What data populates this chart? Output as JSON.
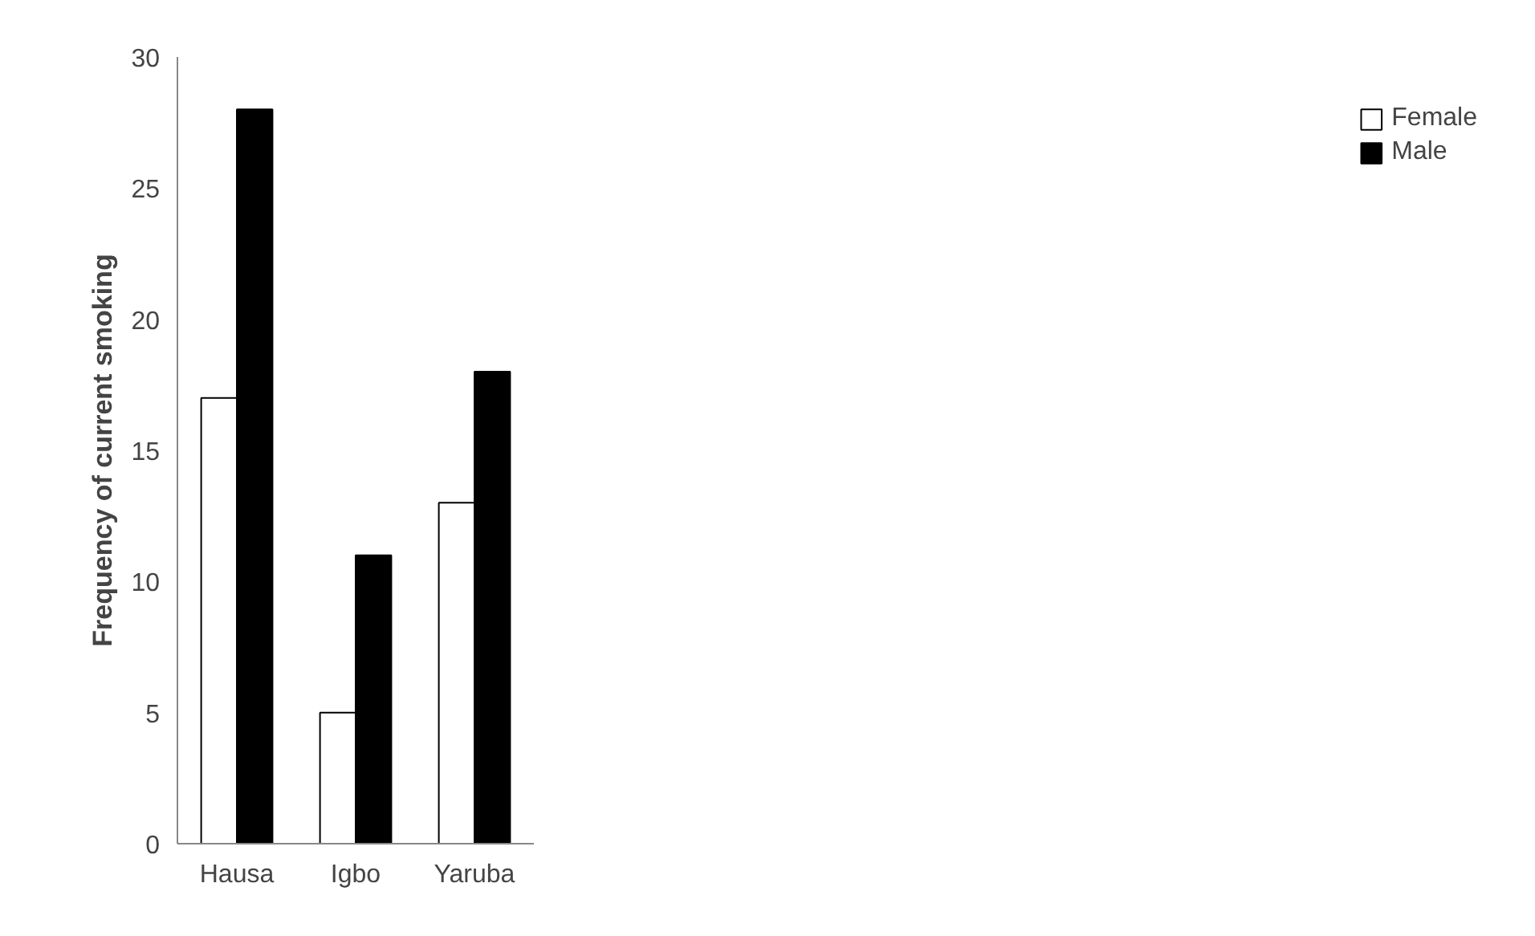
{
  "chart_data": {
    "type": "bar",
    "ylabel": "Frequency of current smoking",
    "categories": [
      "Hausa",
      "Igbo",
      "Yaruba"
    ],
    "series": [
      {
        "name": "Female",
        "color": "#ffffff",
        "values": [
          17,
          5,
          13
        ]
      },
      {
        "name": "Male",
        "color": "#000000",
        "values": [
          28,
          11,
          18
        ]
      }
    ],
    "ylim": [
      0,
      30
    ],
    "yticks": [
      0,
      5,
      10,
      15,
      20,
      25,
      30
    ],
    "grid": false,
    "legend": "right"
  }
}
